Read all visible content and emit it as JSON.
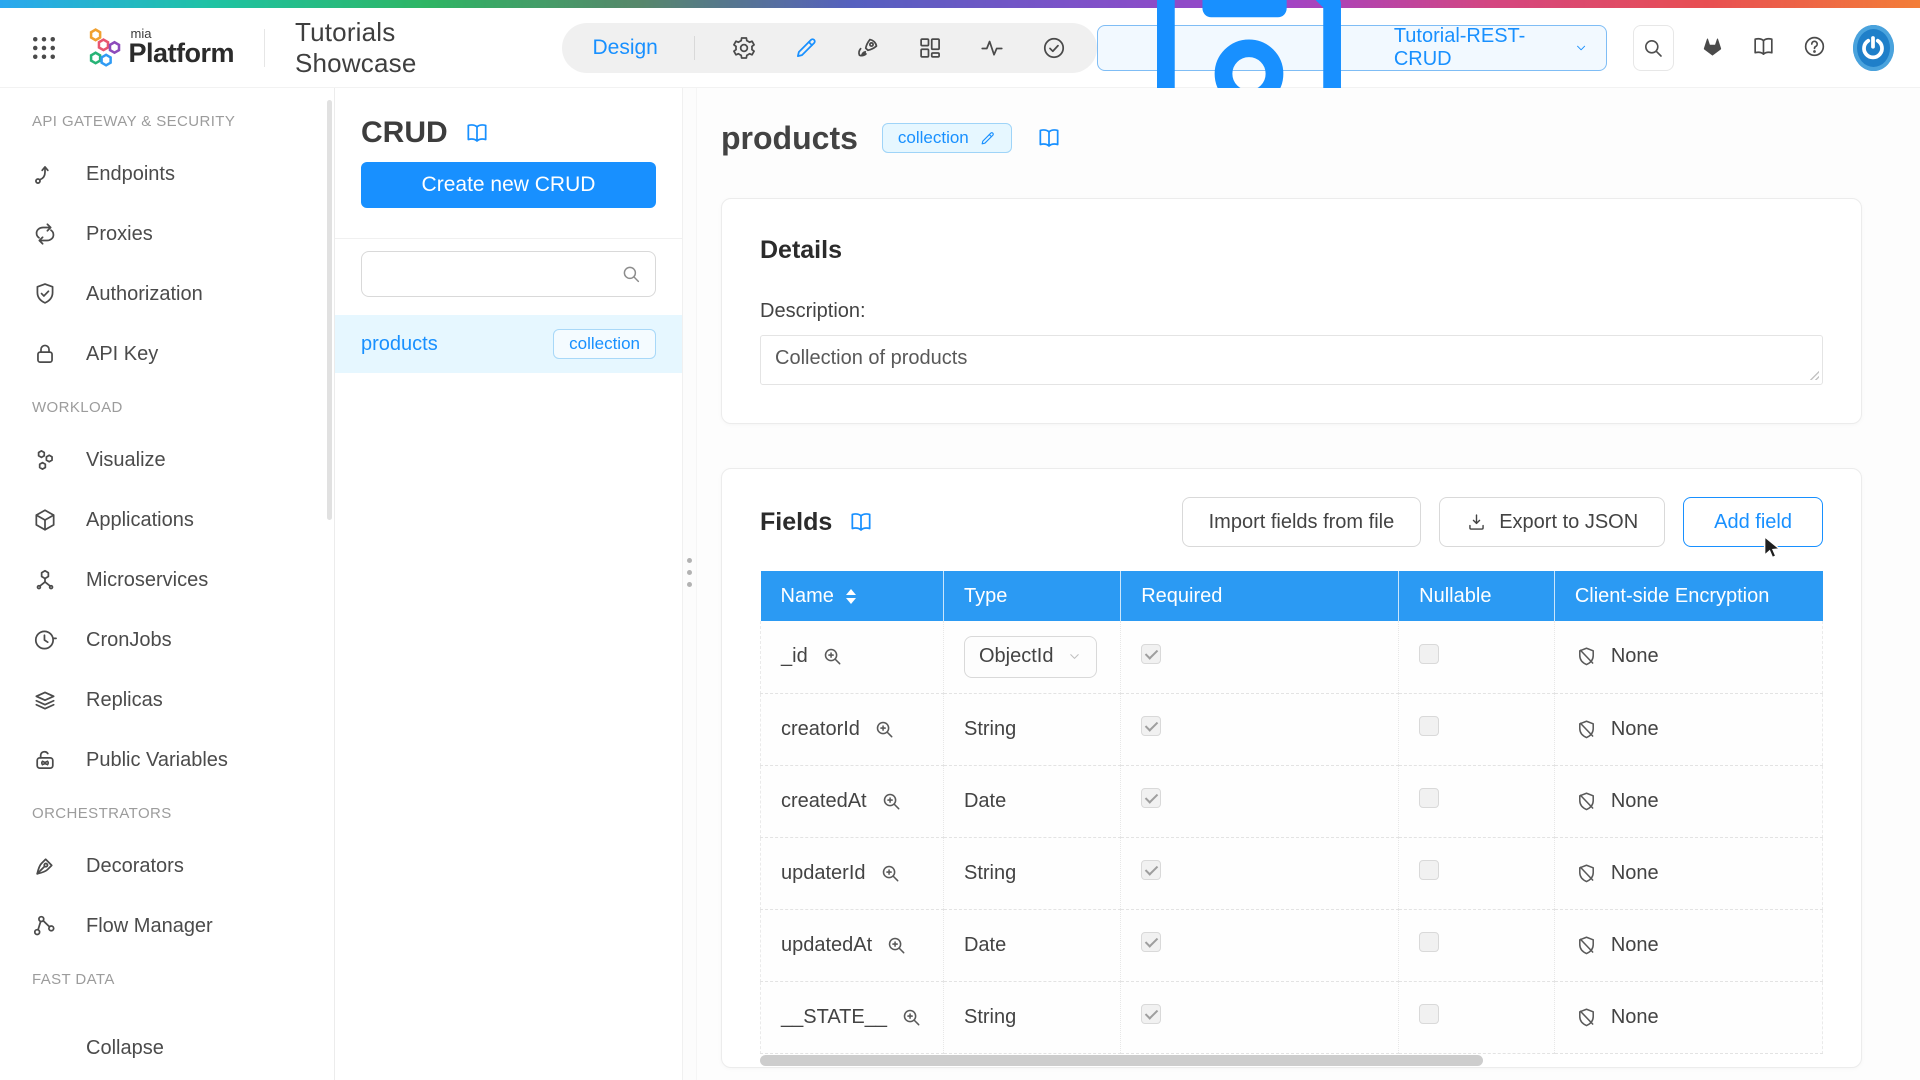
{
  "header": {
    "logo_top": "mia",
    "logo_text": "Platform",
    "project_title": "Tutorials Showcase",
    "design_label": "Design",
    "branch_label": "Tutorial-REST-CRUD"
  },
  "sidebar": {
    "sections": [
      {
        "label": "API GATEWAY & SECURITY",
        "items": [
          {
            "label": "Endpoints",
            "icon": "endpoints-icon"
          },
          {
            "label": "Proxies",
            "icon": "proxies-icon"
          },
          {
            "label": "Authorization",
            "icon": "authorization-icon"
          },
          {
            "label": "API Key",
            "icon": "api-key-icon"
          }
        ]
      },
      {
        "label": "WORKLOAD",
        "items": [
          {
            "label": "Visualize",
            "icon": "visualize-icon"
          },
          {
            "label": "Applications",
            "icon": "applications-icon"
          },
          {
            "label": "Microservices",
            "icon": "microservices-icon"
          },
          {
            "label": "CronJobs",
            "icon": "cronjobs-icon"
          },
          {
            "label": "Replicas",
            "icon": "replicas-icon"
          },
          {
            "label": "Public Variables",
            "icon": "public-variables-icon"
          }
        ]
      },
      {
        "label": "ORCHESTRATORS",
        "items": [
          {
            "label": "Decorators",
            "icon": "decorators-icon"
          },
          {
            "label": "Flow Manager",
            "icon": "flow-manager-icon"
          }
        ]
      },
      {
        "label": "FAST DATA",
        "items": []
      }
    ],
    "collapse_label": "Collapse"
  },
  "crud": {
    "title": "CRUD",
    "create_button": "Create new CRUD",
    "search_placeholder": "",
    "items": [
      {
        "name": "products",
        "tag": "collection",
        "selected": true
      }
    ]
  },
  "main": {
    "title": "products",
    "tag": "collection",
    "details": {
      "heading": "Details",
      "description_label": "Description:",
      "description_value": "Collection of products"
    },
    "fields": {
      "heading": "Fields",
      "import_button": "Import fields from file",
      "export_button": "Export to JSON",
      "add_button": "Add field",
      "table": {
        "columns": [
          "Name",
          "Type",
          "Required",
          "Nullable",
          "Client-side Encryption"
        ],
        "rows": [
          {
            "name": "_id",
            "type": "ObjectId",
            "type_control": "select",
            "required": true,
            "nullable": false,
            "encryption": "None"
          },
          {
            "name": "creatorId",
            "type": "String",
            "type_control": "text",
            "required": true,
            "nullable": false,
            "encryption": "None"
          },
          {
            "name": "createdAt",
            "type": "Date",
            "type_control": "text",
            "required": true,
            "nullable": false,
            "encryption": "None"
          },
          {
            "name": "updaterId",
            "type": "String",
            "type_control": "text",
            "required": true,
            "nullable": false,
            "encryption": "None"
          },
          {
            "name": "updatedAt",
            "type": "Date",
            "type_control": "text",
            "required": true,
            "nullable": false,
            "encryption": "None"
          },
          {
            "name": "__STATE__",
            "type": "String",
            "type_control": "text",
            "required": true,
            "nullable": false,
            "encryption": "None"
          }
        ]
      }
    }
  },
  "colors": {
    "primary": "#1890ff",
    "table_header": "#2b9af3",
    "selected_row_bg": "#e6f7ff",
    "gradient": [
      "#2aa7f0",
      "#1fc3a3",
      "#2eb564",
      "#57876b",
      "#5560bf",
      "#7b52c8",
      "#a044c7",
      "#d44580",
      "#e84f52",
      "#f37e38"
    ]
  }
}
